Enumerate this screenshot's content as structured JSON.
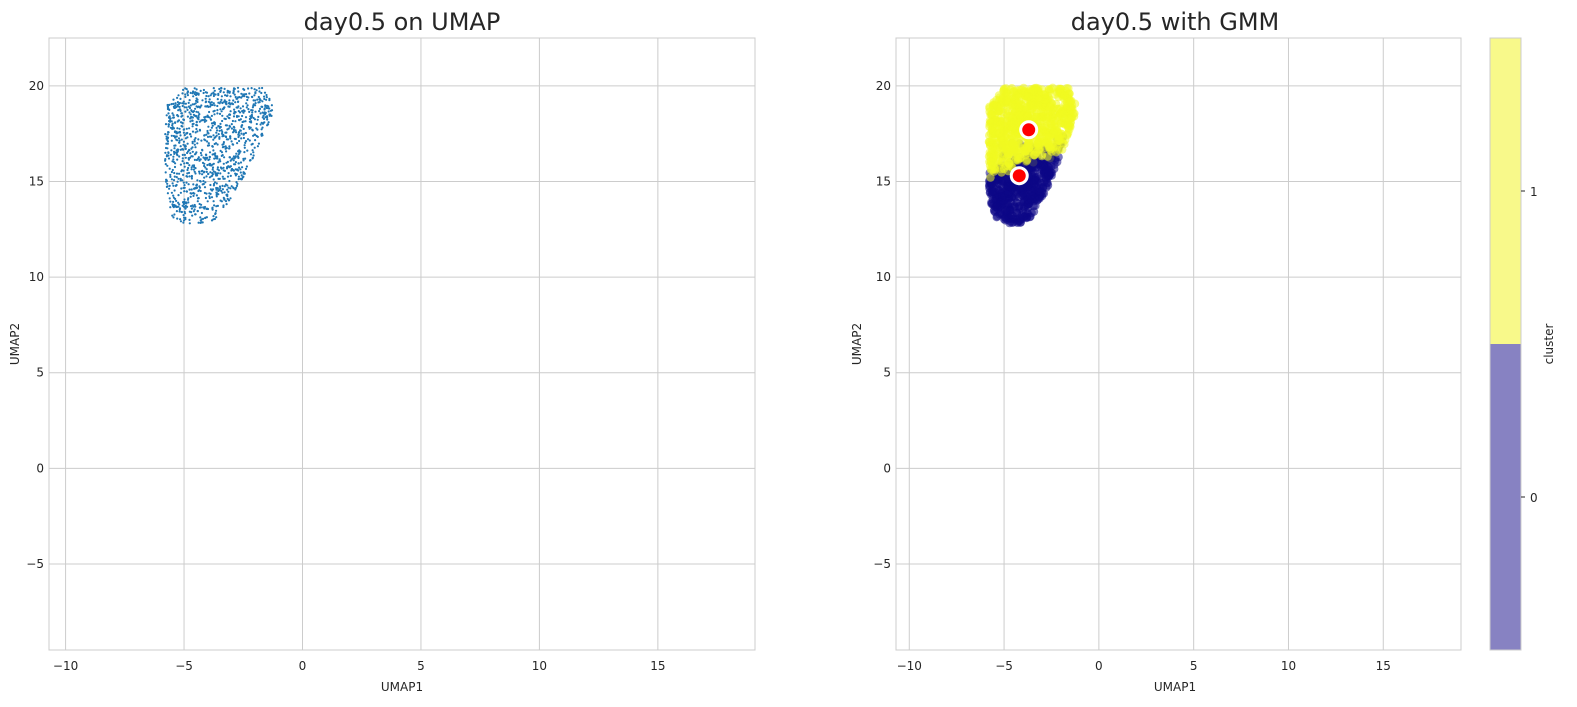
{
  "figure": {
    "left_plot": {
      "title": "day0.5 on UMAP"
    },
    "right_plot": {
      "title": "day0.5 with GMM"
    },
    "colorbar": {
      "label": "cluster",
      "ticks": [
        "0",
        "1"
      ]
    }
  },
  "chart_data": [
    {
      "type": "scatter",
      "title": "day0.5 on UMAP",
      "xlabel": "UMAP1",
      "ylabel": "UMAP2",
      "xlim": [
        -10.7,
        19.1
      ],
      "ylim": [
        -9.5,
        22.5
      ],
      "xticks": [
        -10,
        -5,
        0,
        5,
        10,
        15
      ],
      "yticks": [
        -5,
        0,
        5,
        10,
        15,
        20
      ],
      "ytick_labels": [
        "−5",
        "0",
        "5",
        "10",
        "15",
        "20"
      ],
      "xtick_labels": [
        "−10",
        "−5",
        "0",
        "5",
        "10",
        "15"
      ],
      "grid": true,
      "series": [
        {
          "color": "#1f77b4",
          "marker_size": "small",
          "approx_point_count": 1200,
          "region": {
            "x_range": [
              -5.8,
              -1.2
            ],
            "y_range": [
              12.8,
              19.9
            ]
          }
        }
      ]
    },
    {
      "type": "scatter",
      "title": "day0.5 with GMM",
      "xlabel": "UMAP1",
      "ylabel": "UMAP2",
      "xlim": [
        -10.7,
        19.1
      ],
      "ylim": [
        -9.5,
        22.5
      ],
      "xticks": [
        -10,
        -5,
        0,
        5,
        10,
        15
      ],
      "yticks": [
        -5,
        0,
        5,
        10,
        15,
        20
      ],
      "ytick_labels": [
        "−5",
        "0",
        "5",
        "10",
        "15",
        "20"
      ],
      "xtick_labels": [
        "−10",
        "−5",
        "0",
        "5",
        "10",
        "15"
      ],
      "grid": true,
      "series": [
        {
          "cluster": "0",
          "color": "#0d0887",
          "region": {
            "x_range": [
              -5.8,
              -2.0
            ],
            "y_range": [
              12.8,
              16.8
            ]
          }
        },
        {
          "cluster": "1",
          "color": "#f0f921",
          "region": {
            "x_range": [
              -5.8,
              -1.2
            ],
            "y_range": [
              15.9,
              19.9
            ]
          }
        }
      ],
      "cluster_centers": [
        {
          "cluster": "0",
          "x": -4.2,
          "y": 15.3
        },
        {
          "cluster": "1",
          "x": -3.7,
          "y": 17.7
        }
      ],
      "center_color": "#ff0000",
      "colorbar": {
        "label": "cluster",
        "ticks": [
          "0",
          "1"
        ],
        "colors": [
          "#8782c2",
          "#f8f98a"
        ]
      }
    }
  ]
}
